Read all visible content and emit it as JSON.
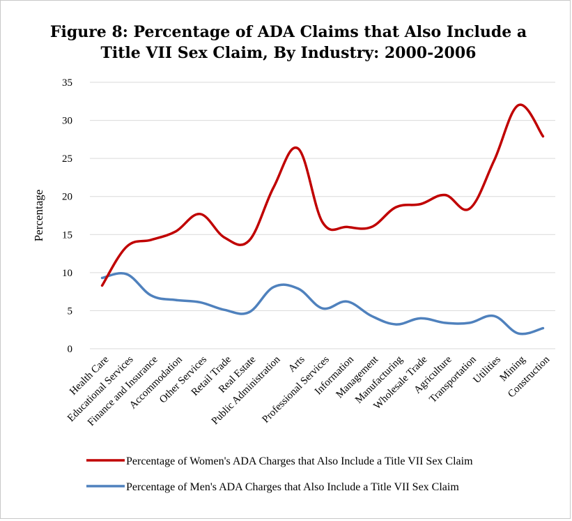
{
  "chart_data": {
    "type": "line",
    "title_line1": "Figure 8: Percentage of ADA Claims that Also Include a",
    "title_line2": "Title VII Sex Claim, By Industry: 2000-2006",
    "ylabel": "Percentage",
    "xlabel": "",
    "ylim": [
      0,
      35
    ],
    "yticks": [
      "0",
      "5",
      "10",
      "15",
      "20",
      "25",
      "30",
      "35"
    ],
    "grid": true,
    "legend_position": "bottom",
    "categories": [
      "Health Care",
      "Educational Services",
      "Finance and Insurance",
      "Accommodation",
      "Other Services",
      "Retail Trade",
      "Real Estate",
      "Public Administration",
      "Arts",
      "Professional Services",
      "Information",
      "Management",
      "Manufacturing",
      "Wholesale Trade",
      "Agriculture",
      "Transportation",
      "Utilities",
      "Mining",
      "Construction"
    ],
    "series": [
      {
        "name": "Percentage of Women's ADA Charges that Also Include a Title VII Sex Claim",
        "color": "#c00000",
        "values": [
          8.3,
          13.4,
          14.3,
          15.4,
          17.7,
          14.6,
          14.2,
          21.2,
          26.3,
          16.6,
          16.0,
          16.0,
          18.6,
          19.0,
          20.2,
          18.4,
          24.7,
          32.0,
          27.9
        ]
      },
      {
        "name": "Percentage of Men's ADA Charges that Also Include a Title VII Sex Claim",
        "color": "#4f81bd",
        "values": [
          9.3,
          9.8,
          7.0,
          6.4,
          6.1,
          5.1,
          4.8,
          8.1,
          7.9,
          5.3,
          6.2,
          4.3,
          3.2,
          4.0,
          3.4,
          3.4,
          4.3,
          2.0,
          2.7
        ]
      }
    ]
  }
}
